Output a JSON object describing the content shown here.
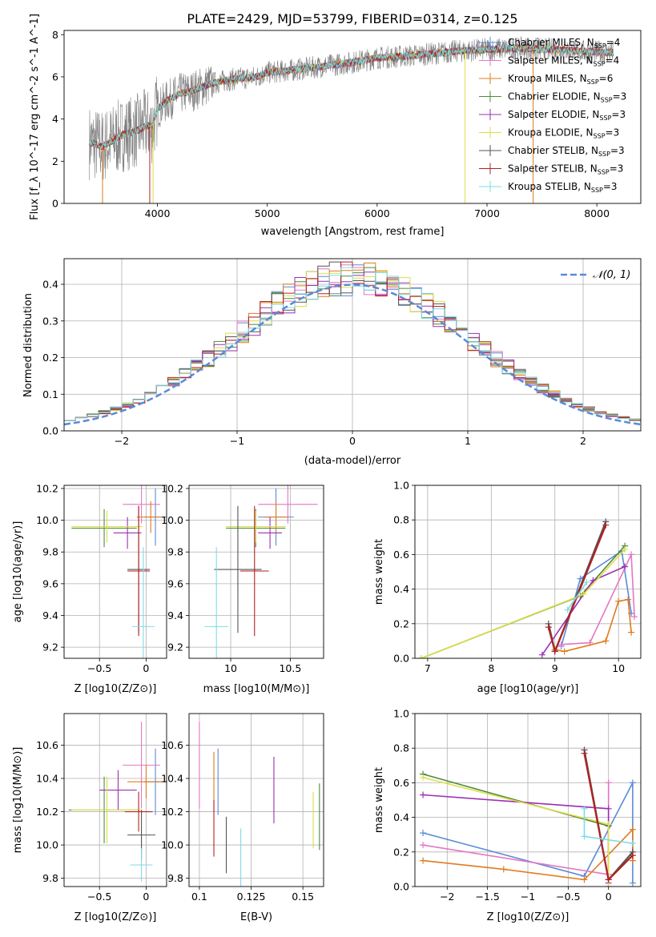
{
  "figure": {
    "title": "PLATE=2429, MJD=53799, FIBERID=0314, z=0.125",
    "colors": {
      "Chabrier MILES": "#5b8ad6",
      "Salpeter MILES": "#e377c2",
      "Kroupa MILES": "#e07b1f",
      "Chabrier ELODIE": "#4d8a3a",
      "Salpeter ELODIE": "#9b30b0",
      "Kroupa ELODIE": "#dede4a",
      "Chabrier STELIB": "#555555",
      "Salpeter STELIB": "#b22222",
      "Kroupa STELIB": "#7fdbe6"
    }
  },
  "chart_data": [
    {
      "id": "spectrum",
      "type": "line",
      "xlabel": "wavelength [Angstrom, rest frame]",
      "ylabel": "Flux [f_λ 10^-17 erg cm^-2 s^-1 A^-1]",
      "xlim": [
        3150,
        8400
      ],
      "ylim": [
        0,
        8.2
      ],
      "xticks": [
        4000,
        5000,
        6000,
        7000,
        8000
      ],
      "yticks": [
        0,
        2,
        4,
        6,
        8
      ],
      "grid": false,
      "legend_position": "right",
      "data_range_x": [
        3380,
        8150
      ],
      "legend": [
        {
          "label": "Chabrier MILES, N",
          "sub": "SSP",
          "suffix": "=4"
        },
        {
          "label": "Salpeter MILES, N",
          "sub": "SSP",
          "suffix": "=4"
        },
        {
          "label": "Kroupa MILES, N",
          "sub": "SSP",
          "suffix": "=6"
        },
        {
          "label": "Chabrier ELODIE, N",
          "sub": "SSP",
          "suffix": "=3"
        },
        {
          "label": "Salpeter ELODIE, N",
          "sub": "SSP",
          "suffix": "=3"
        },
        {
          "label": "Kroupa ELODIE, N",
          "sub": "SSP",
          "suffix": "=3"
        },
        {
          "label": "Chabrier STELIB, N",
          "sub": "SSP",
          "suffix": "=3"
        },
        {
          "label": "Salpeter STELIB, N",
          "sub": "SSP",
          "suffix": "=3"
        },
        {
          "label": "Kroupa STELIB, N",
          "sub": "SSP",
          "suffix": "=3"
        }
      ],
      "continuum": [
        [
          3380,
          2.9
        ],
        [
          3500,
          2.7
        ],
        [
          3600,
          3.0
        ],
        [
          3700,
          3.3
        ],
        [
          3800,
          3.4
        ],
        [
          3900,
          3.7
        ],
        [
          3950,
          3.6
        ],
        [
          4000,
          4.5
        ],
        [
          4100,
          4.9
        ],
        [
          4200,
          5.2
        ],
        [
          4300,
          5.3
        ],
        [
          4500,
          5.7
        ],
        [
          4700,
          5.9
        ],
        [
          4900,
          6.0
        ],
        [
          5000,
          6.2
        ],
        [
          5200,
          6.3
        ],
        [
          5500,
          6.5
        ],
        [
          5800,
          6.7
        ],
        [
          6000,
          6.9
        ],
        [
          6300,
          7.0
        ],
        [
          6500,
          7.1
        ],
        [
          6700,
          7.2
        ],
        [
          7000,
          7.3
        ],
        [
          7300,
          7.35
        ],
        [
          7600,
          7.3
        ],
        [
          7900,
          7.2
        ],
        [
          8150,
          7.15
        ]
      ]
    },
    {
      "id": "residuals",
      "type": "line",
      "xlabel": "(data-model)/error",
      "ylabel": "Normed distribution",
      "xlim": [
        -2.5,
        2.5
      ],
      "ylim": [
        0,
        0.47
      ],
      "xticks": [
        -2,
        -1,
        0,
        1,
        2
      ],
      "yticks": [
        0.0,
        0.1,
        0.2,
        0.3,
        0.4
      ],
      "grid": true,
      "legend_position": "top-right",
      "gaussian_label": "𝒩(0, 1)",
      "bin_width": 0.1
    },
    {
      "id": "age-vs-Z",
      "type": "scatter",
      "xlabel": "Z [log10(Z/Z⊙)]",
      "ylabel": "age [log10(age/yr)]",
      "xlim": [
        -0.88,
        0.22
      ],
      "ylim": [
        9.13,
        10.22
      ],
      "xticks": [
        -0.5,
        0.0
      ],
      "yticks": [
        9.2,
        9.4,
        9.6,
        9.8,
        10.0,
        10.2
      ],
      "grid": true,
      "points": [
        {
          "series": "Chabrier MILES",
          "x": 0.1,
          "xerr": 0.12,
          "y": 10.02,
          "yerr": 0.18
        },
        {
          "series": "Salpeter MILES",
          "x": -0.05,
          "xerr": 0.2,
          "y": 10.1,
          "yerr": 0.12
        },
        {
          "series": "Kroupa MILES",
          "x": 0.05,
          "xerr": 0.15,
          "y": 10.02,
          "yerr": 0.1
        },
        {
          "series": "Chabrier ELODIE",
          "x": -0.45,
          "xerr": 0.35,
          "y": 9.95,
          "yerr": 0.12
        },
        {
          "series": "Salpeter ELODIE",
          "x": -0.2,
          "xerr": 0.15,
          "y": 9.92,
          "yerr": 0.1
        },
        {
          "series": "Kroupa ELODIE",
          "x": -0.42,
          "xerr": 0.38,
          "y": 9.96,
          "yerr": 0.1
        },
        {
          "series": "Chabrier STELIB",
          "x": -0.08,
          "xerr": 0.12,
          "y": 9.69,
          "yerr": 0.4
        },
        {
          "series": "Salpeter STELIB",
          "x": -0.08,
          "xerr": 0.12,
          "y": 9.68,
          "yerr": 0.41
        },
        {
          "series": "Kroupa STELIB",
          "x": -0.03,
          "xerr": 0.12,
          "y": 9.33,
          "yerr": 0.5
        }
      ]
    },
    {
      "id": "age-vs-mass",
      "type": "scatter",
      "xlabel": "mass [log10(M/M⊙)]",
      "ylabel": "",
      "xlim": [
        9.65,
        10.78
      ],
      "ylim": [
        9.13,
        10.22
      ],
      "xticks": [
        10.0,
        10.5
      ],
      "yticks": [
        9.2,
        9.4,
        9.6,
        9.8,
        10.0,
        10.2
      ],
      "grid": true,
      "points": [
        {
          "series": "Chabrier MILES",
          "x": 10.38,
          "xerr": 0.15,
          "y": 10.02,
          "yerr": 0.18
        },
        {
          "series": "Salpeter MILES",
          "x": 10.48,
          "xerr": 0.25,
          "y": 10.1,
          "yerr": 0.12
        },
        {
          "series": "Kroupa MILES",
          "x": 10.38,
          "xerr": 0.1,
          "y": 10.02,
          "yerr": 0.1
        },
        {
          "series": "Chabrier ELODIE",
          "x": 10.21,
          "xerr": 0.25,
          "y": 9.95,
          "yerr": 0.12
        },
        {
          "series": "Salpeter ELODIE",
          "x": 10.33,
          "xerr": 0.1,
          "y": 9.92,
          "yerr": 0.1
        },
        {
          "series": "Kroupa ELODIE",
          "x": 10.21,
          "xerr": 0.25,
          "y": 9.96,
          "yerr": 0.1
        },
        {
          "series": "Chabrier STELIB",
          "x": 10.06,
          "xerr": 0.2,
          "y": 9.69,
          "yerr": 0.4
        },
        {
          "series": "Salpeter STELIB",
          "x": 10.2,
          "xerr": 0.12,
          "y": 9.68,
          "yerr": 0.41
        },
        {
          "series": "Kroupa STELIB",
          "x": 9.88,
          "xerr": 0.1,
          "y": 9.33,
          "yerr": 0.5
        }
      ]
    },
    {
      "id": "weight-vs-age",
      "type": "line",
      "xlabel": "age [log10(age/yr)]",
      "ylabel": "mass weight",
      "xlim": [
        6.8,
        10.35
      ],
      "ylim": [
        0,
        1.0
      ],
      "xticks": [
        7,
        8,
        9,
        10
      ],
      "yticks": [
        0.0,
        0.2,
        0.4,
        0.6,
        0.8,
        1.0
      ],
      "grid": true,
      "series": [
        {
          "name": "Chabrier MILES",
          "x": [
            9.1,
            9.4,
            10.05,
            10.2
          ],
          "y": [
            0.07,
            0.46,
            0.62,
            0.26
          ]
        },
        {
          "name": "Salpeter MILES",
          "x": [
            9.1,
            9.55,
            10.2,
            10.25
          ],
          "y": [
            0.08,
            0.09,
            0.6,
            0.24
          ]
        },
        {
          "name": "Kroupa MILES",
          "x": [
            9.0,
            9.15,
            9.8,
            10.0,
            10.15,
            10.2
          ],
          "y": [
            0.05,
            0.04,
            0.1,
            0.33,
            0.34,
            0.15
          ]
        },
        {
          "name": "Chabrier ELODIE",
          "x": [
            6.9,
            9.4,
            10.1
          ],
          "y": [
            0.0,
            0.36,
            0.65
          ]
        },
        {
          "name": "Salpeter ELODIE",
          "x": [
            8.8,
            9.6,
            10.1
          ],
          "y": [
            0.02,
            0.45,
            0.53
          ]
        },
        {
          "name": "Kroupa ELODIE",
          "x": [
            6.9,
            9.45,
            10.1
          ],
          "y": [
            0.0,
            0.37,
            0.63
          ]
        },
        {
          "name": "Chabrier STELIB",
          "x": [
            8.9,
            9.0,
            9.8
          ],
          "y": [
            0.2,
            0.04,
            0.79
          ]
        },
        {
          "name": "Salpeter STELIB",
          "x": [
            8.9,
            9.0,
            9.8
          ],
          "y": [
            0.18,
            0.04,
            0.77
          ]
        },
        {
          "name": "Kroupa STELIB",
          "x": [
            9.2,
            9.5
          ],
          "y": [
            0.28,
            0.44
          ]
        }
      ]
    },
    {
      "id": "mass-vs-Z",
      "type": "scatter",
      "xlabel": "Z [log10(Z/Z⊙)]",
      "ylabel": "mass [log10(M/M⊙)]",
      "xlim": [
        -0.88,
        0.22
      ],
      "ylim": [
        9.75,
        10.79
      ],
      "xticks": [
        -0.5,
        0.0
      ],
      "yticks": [
        9.8,
        10.0,
        10.2,
        10.4,
        10.6
      ],
      "grid": true,
      "points": [
        {
          "series": "Chabrier MILES",
          "x": 0.1,
          "xerr": 0.12,
          "y": 10.38,
          "yerr": 0.2
        },
        {
          "series": "Salpeter MILES",
          "x": -0.05,
          "xerr": 0.2,
          "y": 10.48,
          "yerr": 0.26
        },
        {
          "series": "Kroupa MILES",
          "x": 0.0,
          "xerr": 0.2,
          "y": 10.38,
          "yerr": 0.1
        },
        {
          "series": "Chabrier ELODIE",
          "x": -0.45,
          "xerr": 0.38,
          "y": 10.21,
          "yerr": 0.2
        },
        {
          "series": "Salpeter ELODIE",
          "x": -0.3,
          "xerr": 0.2,
          "y": 10.33,
          "yerr": 0.12
        },
        {
          "series": "Kroupa ELODIE",
          "x": -0.42,
          "xerr": 0.38,
          "y": 10.21,
          "yerr": 0.2
        },
        {
          "series": "Chabrier STELIB",
          "x": -0.05,
          "xerr": 0.15,
          "y": 10.06,
          "yerr": 0.15
        },
        {
          "series": "Salpeter STELIB",
          "x": -0.08,
          "xerr": 0.15,
          "y": 10.2,
          "yerr": 0.12
        },
        {
          "series": "Kroupa STELIB",
          "x": -0.05,
          "xerr": 0.12,
          "y": 9.88,
          "yerr": 0.1
        }
      ]
    },
    {
      "id": "mass-vs-EBV",
      "type": "scatter",
      "xlabel": "E(B-V)",
      "ylabel": "",
      "xlim": [
        0.095,
        0.16
      ],
      "ylim": [
        9.75,
        10.79
      ],
      "xticks": [
        0.1,
        0.125,
        0.15
      ],
      "yticks": [
        9.8,
        10.0,
        10.2,
        10.4,
        10.6
      ],
      "grid": true,
      "points": [
        {
          "series": "Chabrier MILES",
          "x": 0.109,
          "y": 10.38,
          "yerr": 0.2
        },
        {
          "series": "Salpeter MILES",
          "x": 0.1,
          "y": 10.48,
          "yerr": 0.26
        },
        {
          "series": "Kroupa MILES",
          "x": 0.107,
          "y": 10.38,
          "yerr": 0.18
        },
        {
          "series": "Chabrier ELODIE",
          "x": 0.158,
          "y": 10.17,
          "yerr": 0.2
        },
        {
          "series": "Salpeter ELODIE",
          "x": 0.136,
          "y": 10.33,
          "yerr": 0.2
        },
        {
          "series": "Kroupa ELODIE",
          "x": 0.155,
          "y": 10.15,
          "yerr": 0.17
        },
        {
          "series": "Chabrier STELIB",
          "x": 0.113,
          "y": 10.0,
          "yerr": 0.17
        },
        {
          "series": "Salpeter STELIB",
          "x": 0.107,
          "y": 10.1,
          "yerr": 0.17
        },
        {
          "series": "Kroupa STELIB",
          "x": 0.12,
          "y": 9.86,
          "yerr": 0.24
        }
      ]
    },
    {
      "id": "weight-vs-Z",
      "type": "line",
      "xlabel": "Z [log10(Z/Z⊙)]",
      "ylabel": "mass weight",
      "xlim": [
        -2.4,
        0.4
      ],
      "ylim": [
        0,
        1.0
      ],
      "xticks": [
        -2.0,
        -1.5,
        -1.0,
        -0.5,
        0.0
      ],
      "yticks": [
        0.0,
        0.2,
        0.4,
        0.6,
        0.8,
        1.0
      ],
      "grid": true,
      "series": [
        {
          "name": "Chabrier MILES",
          "x": [
            -2.3,
            -0.3,
            0.3,
            0.3
          ],
          "y": [
            0.31,
            0.06,
            0.6,
            0.02
          ]
        },
        {
          "name": "Salpeter MILES",
          "x": [
            -2.3,
            0.0,
            0.0
          ],
          "y": [
            0.24,
            0.07,
            0.6
          ]
        },
        {
          "name": "Kroupa MILES",
          "x": [
            -2.3,
            -1.3,
            -0.3,
            0.3,
            0.3
          ],
          "y": [
            0.15,
            0.1,
            0.04,
            0.33,
            0.15
          ]
        },
        {
          "name": "Chabrier ELODIE",
          "x": [
            -2.3,
            0.0,
            0.0
          ],
          "y": [
            0.65,
            0.35,
            0.0
          ]
        },
        {
          "name": "Salpeter ELODIE",
          "x": [
            -2.3,
            0.0,
            0.0
          ],
          "y": [
            0.53,
            0.45,
            0.02
          ]
        },
        {
          "name": "Kroupa ELODIE",
          "x": [
            -2.3,
            0.0,
            0.0
          ],
          "y": [
            0.63,
            0.36,
            0.0
          ]
        },
        {
          "name": "Chabrier STELIB",
          "x": [
            -0.3,
            0.0,
            0.3
          ],
          "y": [
            0.79,
            0.04,
            0.2
          ]
        },
        {
          "name": "Salpeter STELIB",
          "x": [
            -0.3,
            0.0,
            0.3
          ],
          "y": [
            0.77,
            0.04,
            0.18
          ]
        },
        {
          "name": "Kroupa STELIB",
          "x": [
            -0.3,
            -0.3,
            0.3
          ],
          "y": [
            0.45,
            0.29,
            0.25
          ]
        }
      ]
    }
  ]
}
